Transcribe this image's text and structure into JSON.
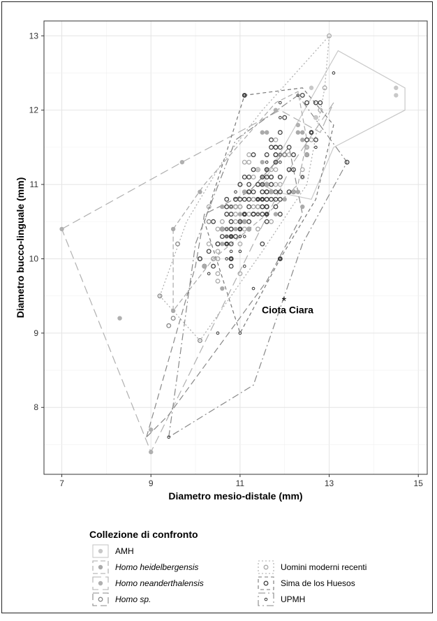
{
  "chart_data": {
    "type": "scatter",
    "xlabel": "Diametro mesio-distale (mm)",
    "ylabel": "Diametro bucco-linguale (mm)",
    "xlim": [
      6.6,
      15.2
    ],
    "ylim": [
      7.1,
      13.2
    ],
    "x_ticks": [
      "7",
      "9",
      "11",
      "13",
      "15"
    ],
    "y_ticks": [
      "8",
      "9",
      "10",
      "11",
      "12",
      "13"
    ],
    "grid": true,
    "annotation": {
      "text": "Ciota Ciara",
      "x": 11.8,
      "y": 9.4,
      "marker": "*"
    },
    "legend": {
      "title": "Collezione di confronto",
      "placement": "bottom",
      "entries": [
        {
          "key": "amh",
          "label": "AMH",
          "italic": false
        },
        {
          "key": "heid",
          "label": "Homo heidelbergensis",
          "italic": true
        },
        {
          "key": "nean",
          "label": "Homo neanderthalensis",
          "italic": true
        },
        {
          "key": "homosp",
          "label": "Homo sp.",
          "italic": true
        },
        {
          "key": "umr",
          "label": "Uomini moderni recenti",
          "italic": false
        },
        {
          "key": "sima",
          "label": "Sima de los Huesos",
          "italic": false
        },
        {
          "key": "upmh",
          "label": "UPMH",
          "italic": false
        }
      ]
    },
    "styles": {
      "amh": {
        "color": "#c8c8c8",
        "dash": "",
        "shape": "filled"
      },
      "heid": {
        "color": "#aaaaaa",
        "dash": "7,4",
        "shape": "filled"
      },
      "nean": {
        "color": "#b0b0b0",
        "dash": "12,6",
        "shape": "filled"
      },
      "homosp": {
        "color": "#888888",
        "dash": "9,5",
        "shape": "ring"
      },
      "umr": {
        "color": "#aaaaaa",
        "dash": "2,3",
        "shape": "ring"
      },
      "sima": {
        "color": "#777777",
        "dash": "5,4",
        "shape": "ring"
      },
      "upmh": {
        "color": "#888888",
        "dash": "10,4,2,4",
        "shape": "smallring"
      }
    },
    "hulls": {
      "amh": [
        [
          11.5,
          11.0
        ],
        [
          13.2,
          12.8
        ],
        [
          14.7,
          12.3
        ],
        [
          14.7,
          12.0
        ],
        [
          13.1,
          11.5
        ],
        [
          12.6,
          10.8
        ],
        [
          11.8,
          10.9
        ]
      ],
      "heid": [
        [
          9.5,
          10.4
        ],
        [
          10.2,
          11.0
        ],
        [
          11.8,
          12.1
        ],
        [
          12.3,
          12.25
        ],
        [
          12.5,
          11.6
        ],
        [
          12.3,
          11.0
        ],
        [
          11.6,
          10.6
        ],
        [
          10.4,
          10.0
        ],
        [
          9.5,
          9.3
        ]
      ],
      "nean": [
        [
          7.0,
          10.4
        ],
        [
          9.7,
          11.3
        ],
        [
          11.9,
          12.0
        ],
        [
          12.8,
          11.7
        ],
        [
          13.1,
          12.1
        ],
        [
          12.2,
          11.3
        ],
        [
          9.0,
          7.4
        ]
      ],
      "homosp": [
        [
          8.9,
          7.6
        ],
        [
          10.0,
          9.9
        ],
        [
          10.2,
          10.6
        ],
        [
          11.2,
          10.9
        ],
        [
          12.1,
          11.5
        ],
        [
          12.4,
          10.6
        ],
        [
          11.6,
          9.7
        ],
        [
          9.4,
          7.9
        ]
      ],
      "umr": [
        [
          9.2,
          9.5
        ],
        [
          9.8,
          10.5
        ],
        [
          10.6,
          11.3
        ],
        [
          11.5,
          12.0
        ],
        [
          13.0,
          13.0
        ],
        [
          12.9,
          12.3
        ],
        [
          12.5,
          11.0
        ],
        [
          11.5,
          10.1
        ],
        [
          10.1,
          8.9
        ]
      ],
      "sima": [
        [
          10.2,
          10.5
        ],
        [
          11.1,
          12.2
        ],
        [
          12.4,
          12.3
        ],
        [
          13.1,
          11.8
        ],
        [
          12.7,
          10.8
        ],
        [
          11.9,
          10.0
        ],
        [
          11.0,
          9.0
        ]
      ],
      "upmh": [
        [
          9.4,
          7.6
        ],
        [
          10.0,
          10.2
        ],
        [
          10.9,
          11.6
        ],
        [
          12.3,
          12.2
        ],
        [
          13.4,
          11.3
        ],
        [
          12.4,
          10.2
        ],
        [
          11.3,
          8.3
        ]
      ]
    },
    "points": {
      "amh": [
        [
          14.5,
          12.3
        ],
        [
          14.5,
          12.2
        ],
        [
          12.6,
          12.3
        ],
        [
          12.5,
          11.5
        ],
        [
          12.7,
          11.9
        ],
        [
          11.4,
          11.2
        ],
        [
          11.6,
          11.0
        ]
      ],
      "heid": [
        [
          9.5,
          10.4
        ],
        [
          10.1,
          10.9
        ],
        [
          11.6,
          11.0
        ],
        [
          12.4,
          11.6
        ],
        [
          10.6,
          10.2
        ],
        [
          9.5,
          9.3
        ]
      ],
      "nean": [
        [
          7.0,
          10.4
        ],
        [
          9.0,
          7.4
        ],
        [
          9.7,
          11.3
        ],
        [
          8.3,
          9.2
        ],
        [
          9.0,
          7.7
        ],
        [
          11.8,
          12.0
        ],
        [
          12.3,
          11.8
        ]
      ],
      "homosp": [
        [
          9.4,
          9.1
        ],
        [
          9.5,
          9.2
        ],
        [
          9.6,
          10.2
        ],
        [
          10.3,
          10.5
        ],
        [
          12.0,
          11.4
        ],
        [
          10.1,
          8.9
        ],
        [
          9.2,
          9.5
        ]
      ],
      "umr": [
        [
          13.0,
          13.0
        ],
        [
          12.8,
          12.0
        ],
        [
          12.4,
          11.2
        ],
        [
          11.9,
          11.0
        ],
        [
          10.9,
          10.5
        ],
        [
          12.5,
          11.5
        ],
        [
          10.5,
          10.0
        ],
        [
          11.2,
          11.4
        ],
        [
          12.9,
          12.3
        ]
      ],
      "sima": [
        [
          11.1,
          12.2
        ],
        [
          12.4,
          12.2
        ],
        [
          13.4,
          11.3
        ],
        [
          12.8,
          12.1
        ],
        [
          12.6,
          11.7
        ],
        [
          11.9,
          10.0
        ],
        [
          10.9,
          10.3
        ]
      ],
      "upmh": [
        [
          9.4,
          7.6
        ],
        [
          11.0,
          9.0
        ],
        [
          10.5,
          9.0
        ],
        [
          13.1,
          12.5
        ],
        [
          12.3,
          12.2
        ],
        [
          11.1,
          12.2
        ],
        [
          11.9,
          10.0
        ],
        [
          11.3,
          9.6
        ]
      ]
    },
    "cluster": {
      "x_center": 11.3,
      "y_center": 10.75,
      "x_spread": 0.75,
      "y_spread": 0.55,
      "count": 260
    }
  }
}
